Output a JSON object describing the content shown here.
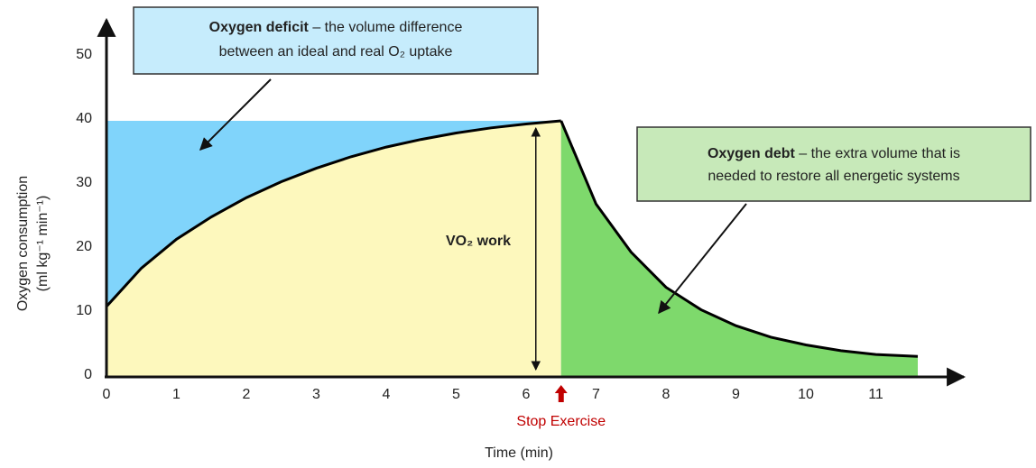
{
  "chart_data": {
    "type": "area",
    "xlabel": "Time (min)",
    "ylabel": [
      "Oxygen consumption",
      "(ml kg⁻¹ min⁻¹)"
    ],
    "xlim": [
      0,
      12.3
    ],
    "ylim": [
      0,
      55
    ],
    "xticks": [
      0,
      1,
      2,
      3,
      4,
      5,
      6,
      7,
      8,
      9,
      10,
      11
    ],
    "yticks": [
      0,
      10,
      20,
      30,
      40,
      50
    ],
    "deficit_color": "#80d4fb",
    "series": [
      {
        "color": "#fdf8bd",
        "x": [
          0,
          0.5,
          1,
          1.5,
          2,
          2.5,
          3,
          3.5,
          4,
          4.5,
          5,
          5.5,
          6,
          6.5
        ],
        "values": [
          11,
          17,
          21.5,
          25,
          28,
          30.5,
          32.6,
          34.4,
          35.9,
          37.1,
          38.1,
          38.9,
          39.5,
          40
        ]
      },
      {
        "color": "#7ed96c",
        "x": [
          6.5,
          7,
          7.5,
          8,
          8.5,
          9,
          9.5,
          10,
          10.5,
          11,
          11.6
        ],
        "values": [
          40,
          27,
          19.5,
          14,
          10.5,
          8,
          6.2,
          5,
          4.1,
          3.5,
          3.2
        ]
      }
    ],
    "stop": {
      "x": 6.5,
      "label": "Stop Exercise",
      "color": "#c00000"
    },
    "work_label": "VO₂ work",
    "deficit_note": {
      "bold": "Oxygen deficit",
      "line1": " – the volume difference",
      "line2": "between an ideal and real O₂ uptake"
    },
    "debt_note": {
      "bold": "Oxygen debt",
      "line1": " – the extra volume that is",
      "line2": "needed to restore all energetic systems"
    }
  }
}
